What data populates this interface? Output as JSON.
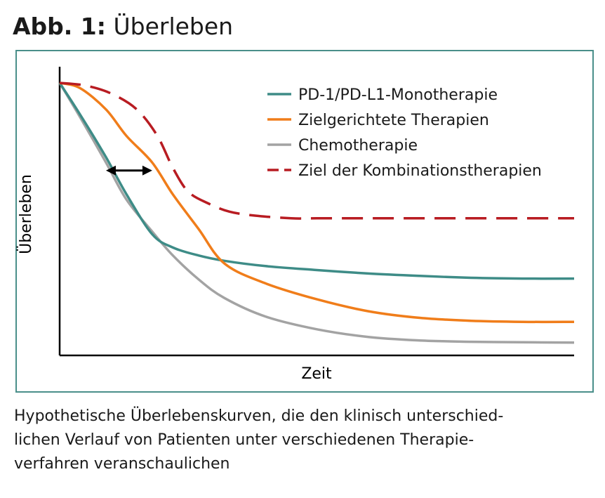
{
  "figure": {
    "label": "Abb. 1:",
    "title": "Überleben",
    "caption_lines": [
      "Hypothetische Überlebenskurven, die den klinisch unterschied-",
      "lichen Verlauf von Patienten unter verschiedenen Therapie-",
      "verfahren veranschaulichen"
    ]
  },
  "colors": {
    "frame": "#4a8f8a",
    "axis": "#000000"
  },
  "chart_data": {
    "type": "line",
    "title": "",
    "xlabel": "Zeit",
    "ylabel": "Überleben",
    "xlim": [
      0,
      100
    ],
    "ylim": [
      0,
      100
    ],
    "grid": false,
    "ticks": false,
    "legend_position": "top-right",
    "series": [
      {
        "name": "PD-1/PD-L1-Monotherapie",
        "color": "#3e8c87",
        "dash": "solid",
        "x": [
          0,
          4,
          9,
          13,
          18,
          22,
          27,
          32,
          40,
          50,
          60,
          70,
          80,
          90,
          100
        ],
        "y": [
          100,
          88,
          72,
          58,
          43,
          38,
          35,
          33,
          31,
          29.5,
          28.2,
          27.3,
          26.6,
          26.3,
          26.3
        ]
      },
      {
        "name": "Zielgerichtete Therapien",
        "color": "#f07d1a",
        "dash": "solid",
        "x": [
          0,
          4,
          9,
          13,
          18,
          22,
          27,
          32,
          40,
          50,
          60,
          70,
          80,
          90,
          100
        ],
        "y": [
          100,
          98,
          90,
          80,
          70,
          58,
          45,
          32,
          24.5,
          18.5,
          14,
          11.5,
          10.4,
          10,
          10
        ]
      },
      {
        "name": "Chemotherapie",
        "color": "#a3a3a3",
        "dash": "solid",
        "x": [
          0,
          4,
          9,
          13,
          18,
          22,
          27,
          32,
          40,
          50,
          60,
          70,
          80,
          90,
          100
        ],
        "y": [
          100,
          87,
          70,
          56,
          44,
          35,
          26,
          19,
          12,
          7.2,
          4.3,
          3,
          2.5,
          2.3,
          2.2
        ]
      },
      {
        "name": "Ziel der Kombinationstherapien",
        "color": "#b81c22",
        "dash": "dashed",
        "x": [
          0,
          5,
          10,
          15,
          19,
          22,
          25,
          29,
          33,
          38,
          45,
          50,
          60,
          70,
          80,
          90,
          100
        ],
        "y": [
          100,
          99,
          96,
          90,
          80,
          68,
          59,
          54.5,
          51.5,
          50,
          49,
          49,
          49,
          49,
          49,
          49,
          49
        ]
      }
    ],
    "annotations": [
      {
        "type": "double-arrow",
        "x_start": 9,
        "x_end": 18,
        "y": 67
      }
    ]
  }
}
